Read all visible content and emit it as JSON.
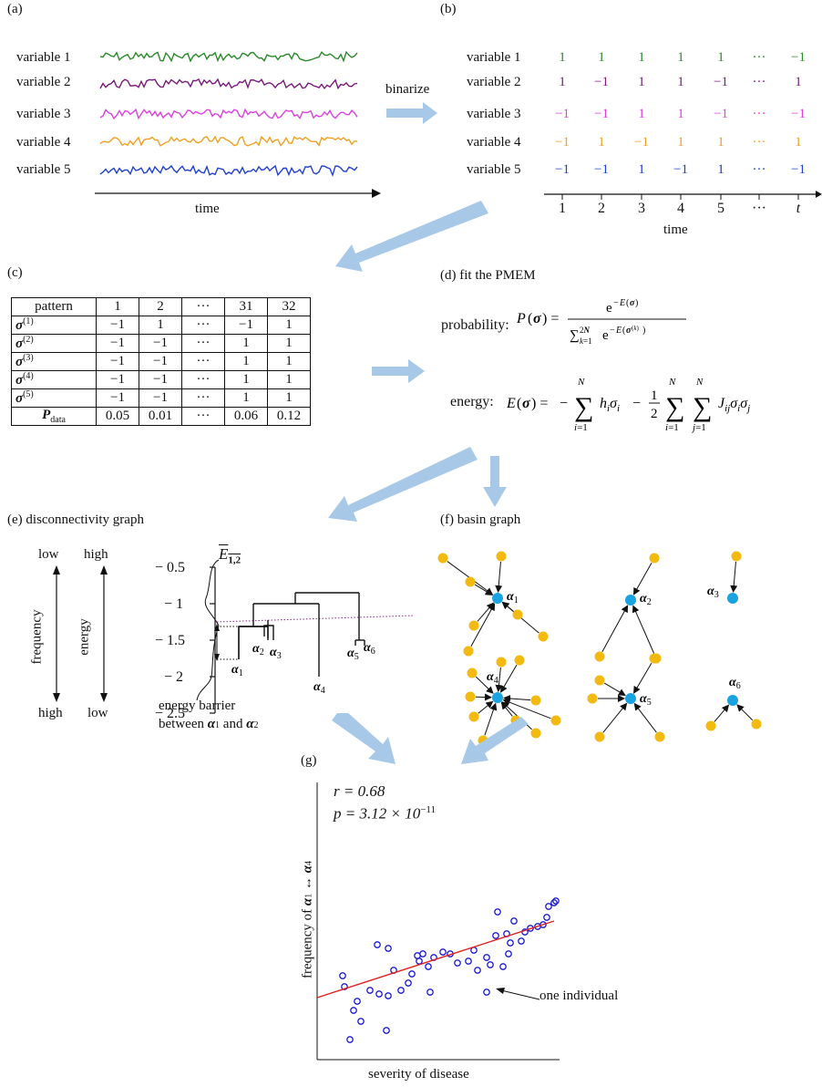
{
  "panel_a": {
    "label": "(a)",
    "variables": [
      "variable 1",
      "variable 2",
      "variable 3",
      "variable 4",
      "variable 5"
    ],
    "colors": [
      "#2a8a2a",
      "#7a1a7a",
      "#e040e0",
      "#f0a020",
      "#2040d0"
    ],
    "x_axis": "time"
  },
  "binarize_label": "binarize",
  "panel_b": {
    "label": "(b)",
    "variables": [
      "variable 1",
      "variable 2",
      "variable 3",
      "variable 4",
      "variable 5"
    ],
    "rows": [
      [
        "1",
        "1",
        "1",
        "1",
        "1",
        "···",
        "−1"
      ],
      [
        "1",
        "−1",
        "1",
        "1",
        "−1",
        "···",
        "1"
      ],
      [
        "−1",
        "−1",
        "1",
        "1",
        "−1",
        "···",
        "−1"
      ],
      [
        "−1",
        "1",
        "−1",
        "1",
        "1",
        "···",
        "1"
      ],
      [
        "−1",
        "−1",
        "1",
        "−1",
        "1",
        "···",
        "−1"
      ]
    ],
    "ticks": [
      "1",
      "2",
      "3",
      "4",
      "5",
      "···",
      "t"
    ],
    "x_axis": "time"
  },
  "panel_c": {
    "label": "(c)",
    "header": [
      "pattern",
      "1",
      "2",
      "···",
      "31",
      "32"
    ],
    "rows": [
      {
        "name": "σ",
        "sup": "(1)",
        "cells": [
          "−1",
          "1",
          "···",
          "−1",
          "1"
        ]
      },
      {
        "name": "σ",
        "sup": "(2)",
        "cells": [
          "−1",
          "−1",
          "···",
          "1",
          "1"
        ]
      },
      {
        "name": "σ",
        "sup": "(3)",
        "cells": [
          "−1",
          "−1",
          "···",
          "1",
          "1"
        ]
      },
      {
        "name": "σ",
        "sup": "(4)",
        "cells": [
          "−1",
          "−1",
          "···",
          "1",
          "1"
        ]
      },
      {
        "name": "σ",
        "sup": "(5)",
        "cells": [
          "−1",
          "−1",
          "···",
          "1",
          "1"
        ]
      }
    ],
    "pdata_name": "P",
    "pdata_sub": "data",
    "pdata": [
      "0.05",
      "0.01",
      "···",
      "0.06",
      "0.12"
    ]
  },
  "panel_d": {
    "label": "(d) fit the PMEM",
    "prob_label": "probability:",
    "energy_label": "energy:"
  },
  "panel_e": {
    "label": "(e) disconnectivity graph",
    "freq_axis": "frequency",
    "energy_axis": "energy",
    "low": "low",
    "high": "high",
    "yticks": [
      "− 0.5",
      "− 1",
      "− 1.5",
      "− 2",
      "− 2.5"
    ],
    "barrier_symbol": "E",
    "barrier_sub": "1,2",
    "barrier_text_1": "energy barrier",
    "barrier_text_2": "between",
    "and_text": "and",
    "alpha": "α"
  },
  "panel_f": {
    "label": "(f) basin graph",
    "node_color_local_min": "#1aa3e0",
    "node_color_other": "#f2b90f",
    "alpha": "α"
  },
  "panel_g": {
    "label": "(g)",
    "r_text": "r = 0.68",
    "p_text_prefix": "p = 3.12 × 10",
    "p_exp": "−11",
    "ylabel_prefix": "frequency of",
    "xlabel": "severity of disease",
    "annotation": "one individual",
    "line_color": "#e02020",
    "point_color": "#1a1ad0"
  },
  "arrow_color": "#a8c8e8"
}
